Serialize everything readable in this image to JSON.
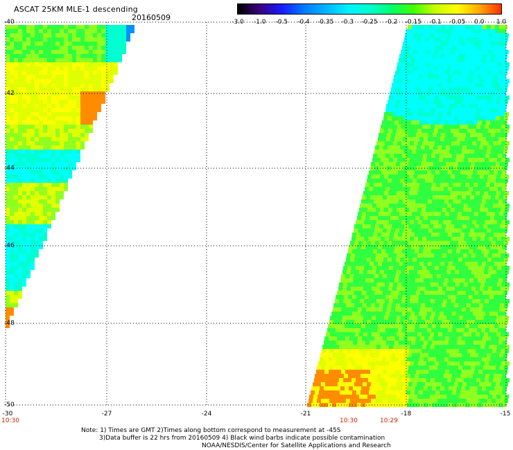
{
  "header": {
    "title": "ASCAT 25KM MLE-1 descending",
    "date": "20160509"
  },
  "colorbar": {
    "tick_labels": [
      "-3.0",
      "-1.0",
      "-0.5",
      "-0.4",
      "-0.35",
      "-0.3",
      "-0.25",
      "-0.2",
      "-0.15",
      "-0.1",
      "-0.05",
      "0.0",
      "1.0"
    ],
    "colors": [
      "#000000",
      "#3a0080",
      "#1a1aff",
      "#0078ff",
      "#00b4ff",
      "#00f0ff",
      "#00ffd0",
      "#00ff70",
      "#40ff00",
      "#c8ff00",
      "#ffff00",
      "#ffaa00",
      "#ff3000"
    ]
  },
  "map": {
    "lat_labels": [
      "-40",
      "-42",
      "-44",
      "-46",
      "-48",
      "-50"
    ],
    "lon_labels": [
      "-30",
      "-27",
      "-24",
      "-21",
      "-18",
      "-15"
    ],
    "pass_times": [
      "10:30",
      "10:30",
      "10:29"
    ],
    "grid": true,
    "swaths": [
      {
        "name": "west swath",
        "dominant": "yellow-green with cyan band near -44 to -47"
      },
      {
        "name": "east swath",
        "dominant": "green with cyan core near -40 to -43, orange patch near -49.5"
      }
    ]
  },
  "footer": {
    "line1": "Note: 1) Times are GMT 2)Times along bottom correspond to measurement at -45S",
    "line2": "3)Data buffer is 22 hrs from 20160509 4) Black wind barbs indicate possible contamination",
    "line3": "NOAA/NESDIS/Center for Satellite Applications and Research"
  }
}
